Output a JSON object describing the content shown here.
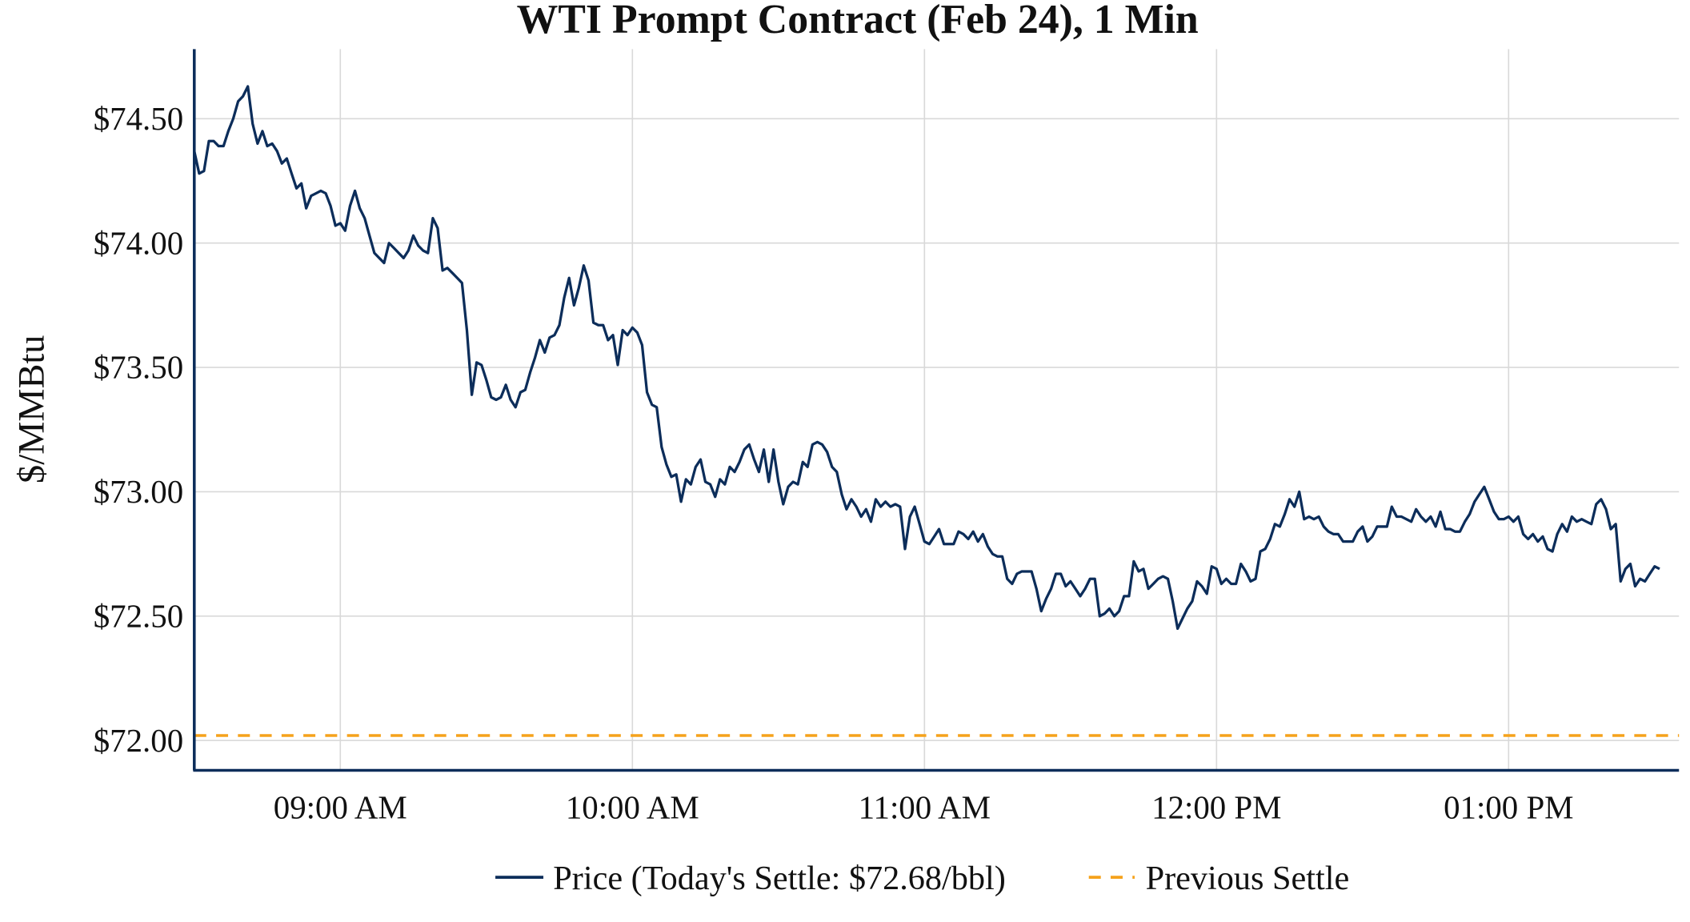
{
  "chart_data": {
    "type": "line",
    "title": "WTI Prompt Contract (Feb 24), 1 Min",
    "xlabel": "",
    "ylabel": "$/MMBtu",
    "xlim": [
      "08:30",
      "13:35"
    ],
    "ylim": [
      71.88,
      74.78
    ],
    "x_interval_minutes": 1,
    "x_ticks": [
      "09:00",
      "10:00",
      "11:00",
      "12:00",
      "13:00"
    ],
    "x_tick_labels": [
      "09:00 AM",
      "10:00 AM",
      "11:00 AM",
      "12:00 PM",
      "01:00 PM"
    ],
    "y_ticks": [
      72.0,
      72.5,
      73.0,
      73.5,
      74.0,
      74.5
    ],
    "y_tick_labels": [
      "$72.00",
      "$72.50",
      "$73.00",
      "$73.50",
      "$74.00",
      "$74.50"
    ],
    "grid": true,
    "legend_position": "bottom",
    "colors": {
      "price": "#0c2d5a",
      "previous_settle": "#f5a21b",
      "axis": "#0c2d5a",
      "grid": "#d9d9d9"
    },
    "series": [
      {
        "name": "Price (Today's Settle: $72.68/bbl)",
        "style": "solid",
        "values": [
          74.37,
          74.28,
          74.29,
          74.41,
          74.41,
          74.39,
          74.39,
          74.45,
          74.5,
          74.57,
          74.59,
          74.63,
          74.48,
          74.4,
          74.45,
          74.39,
          74.4,
          74.37,
          74.32,
          74.34,
          74.28,
          74.22,
          74.24,
          74.14,
          74.19,
          74.2,
          74.21,
          74.2,
          74.15,
          74.07,
          74.08,
          74.05,
          74.15,
          74.21,
          74.14,
          74.1,
          74.03,
          73.96,
          73.94,
          73.92,
          74.0,
          73.98,
          73.96,
          73.94,
          73.97,
          74.03,
          73.99,
          73.97,
          73.96,
          74.1,
          74.06,
          73.89,
          73.9,
          73.88,
          73.86,
          73.84,
          73.65,
          73.39,
          73.52,
          73.51,
          73.45,
          73.38,
          73.37,
          73.38,
          73.43,
          73.37,
          73.34,
          73.4,
          73.41,
          73.48,
          73.54,
          73.61,
          73.56,
          73.62,
          73.63,
          73.67,
          73.78,
          73.86,
          73.75,
          73.82,
          73.91,
          73.85,
          73.68,
          73.67,
          73.67,
          73.61,
          73.63,
          73.51,
          73.65,
          73.63,
          73.66,
          73.64,
          73.59,
          73.4,
          73.35,
          73.34,
          73.18,
          73.11,
          73.06,
          73.07,
          72.96,
          73.05,
          73.03,
          73.1,
          73.13,
          73.04,
          73.03,
          72.98,
          73.05,
          73.03,
          73.1,
          73.08,
          73.12,
          73.17,
          73.19,
          73.13,
          73.08,
          73.17,
          73.04,
          73.17,
          73.04,
          72.95,
          73.02,
          73.04,
          73.03,
          73.12,
          73.1,
          73.19,
          73.2,
          73.19,
          73.16,
          73.1,
          73.08,
          72.99,
          72.93,
          72.97,
          72.94,
          72.9,
          72.93,
          72.88,
          72.97,
          72.94,
          72.96,
          72.94,
          72.95,
          72.94,
          72.77,
          72.9,
          72.94,
          72.87,
          72.8,
          72.79,
          72.82,
          72.85,
          72.79,
          72.79,
          72.79,
          72.84,
          72.83,
          72.81,
          72.84,
          72.8,
          72.83,
          72.78,
          72.75,
          72.74,
          72.74,
          72.65,
          72.63,
          72.67,
          72.68,
          72.68,
          72.68,
          72.61,
          72.52,
          72.57,
          72.61,
          72.67,
          72.67,
          72.62,
          72.64,
          72.61,
          72.58,
          72.61,
          72.65,
          72.65,
          72.5,
          72.51,
          72.53,
          72.5,
          72.52,
          72.58,
          72.58,
          72.72,
          72.68,
          72.69,
          72.61,
          72.63,
          72.65,
          72.66,
          72.65,
          72.56,
          72.45,
          72.49,
          72.53,
          72.56,
          72.64,
          72.62,
          72.59,
          72.7,
          72.69,
          72.63,
          72.65,
          72.63,
          72.63,
          72.71,
          72.68,
          72.64,
          72.65,
          72.76,
          72.77,
          72.81,
          72.87,
          72.86,
          72.91,
          72.97,
          72.94,
          73.0,
          72.89,
          72.9,
          72.89,
          72.9,
          72.86,
          72.84,
          72.83,
          72.83,
          72.8,
          72.8,
          72.8,
          72.84,
          72.86,
          72.8,
          72.82,
          72.86,
          72.86,
          72.86,
          72.94,
          72.9,
          72.9,
          72.89,
          72.88,
          72.93,
          72.9,
          72.88,
          72.9,
          72.86,
          72.92,
          72.85,
          72.85,
          72.84,
          72.84,
          72.88,
          72.91,
          72.96,
          72.99,
          73.02,
          72.97,
          72.92,
          72.89,
          72.89,
          72.9,
          72.88,
          72.9,
          72.83,
          72.81,
          72.83,
          72.8,
          72.82,
          72.77,
          72.76,
          72.83,
          72.87,
          72.84,
          72.9,
          72.88,
          72.89,
          72.88,
          72.87,
          72.95,
          72.97,
          72.93,
          72.85,
          72.87,
          72.64,
          72.69,
          72.71,
          72.62,
          72.65,
          72.64,
          72.67,
          72.7,
          72.69
        ]
      },
      {
        "name": "Previous Settle",
        "style": "dashed",
        "value": 72.02
      }
    ]
  }
}
